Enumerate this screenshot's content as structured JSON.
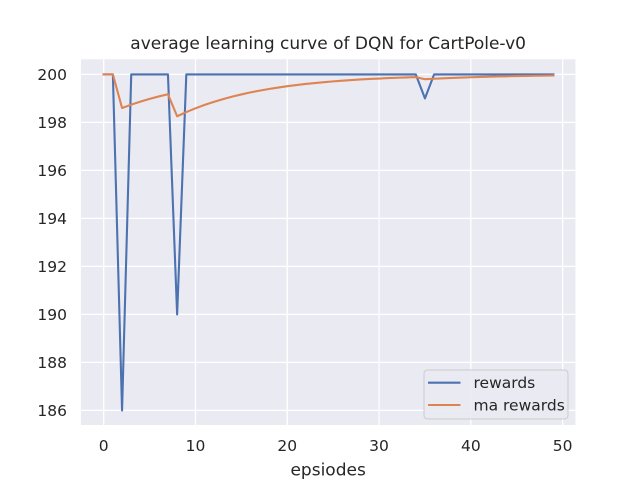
{
  "figure": {
    "background": "#ffffff",
    "plot_background": "#eaeaf2",
    "grid_color": "#ffffff",
    "text_color": "#262626",
    "legend_face_color": "#eaeaf2",
    "legend_edge_color": "#cccccc"
  },
  "chart_data": {
    "type": "line",
    "title": "average learning curve of DQN for CartPole-v0",
    "xlabel": "epsiodes",
    "ylabel": "",
    "x": [
      0,
      1,
      2,
      3,
      4,
      5,
      6,
      7,
      8,
      9,
      10,
      11,
      12,
      13,
      14,
      15,
      16,
      17,
      18,
      19,
      20,
      21,
      22,
      23,
      24,
      25,
      26,
      27,
      28,
      29,
      30,
      31,
      32,
      33,
      34,
      35,
      36,
      37,
      38,
      39,
      40,
      41,
      42,
      43,
      44,
      45,
      46,
      47,
      48,
      49
    ],
    "series": [
      {
        "name": "rewards",
        "color": "#4c72b0",
        "values": [
          200,
          200,
          186,
          200,
          200,
          200,
          200,
          200,
          190,
          200,
          200,
          200,
          200,
          200,
          200,
          200,
          200,
          200,
          200,
          200,
          200,
          200,
          200,
          200,
          200,
          200,
          200,
          200,
          200,
          200,
          200,
          200,
          200,
          200,
          200,
          199,
          200,
          200,
          200,
          200,
          200,
          200,
          200,
          200,
          200,
          200,
          200,
          200,
          200,
          200
        ]
      },
      {
        "name": "ma rewards",
        "color": "#dd8452",
        "values": [
          200,
          200,
          198.6,
          198.74,
          198.866,
          198.9794,
          199.0815,
          199.1733,
          198.256,
          198.4304,
          198.5873,
          198.7286,
          198.8558,
          198.9702,
          199.0732,
          199.1658,
          199.2493,
          199.3243,
          199.3919,
          199.4527,
          199.5074,
          199.5567,
          199.601,
          199.6409,
          199.6768,
          199.7091,
          199.7382,
          199.7644,
          199.788,
          199.8092,
          199.8283,
          199.8454,
          199.8609,
          199.8748,
          199.8873,
          199.7986,
          199.8187,
          199.8369,
          199.8532,
          199.8679,
          199.8811,
          199.893,
          199.9037,
          199.9133,
          199.922,
          199.9298,
          199.9368,
          199.9431,
          199.9488,
          199.9539
        ]
      }
    ],
    "xticks": [
      0,
      10,
      20,
      30,
      40,
      50
    ],
    "yticks": [
      186,
      188,
      190,
      192,
      194,
      196,
      198,
      200
    ],
    "xlim": [
      -2.484,
      51.392
    ],
    "ylim": [
      185.392,
      200.629
    ],
    "grid": true,
    "legend_position": "lower right"
  }
}
